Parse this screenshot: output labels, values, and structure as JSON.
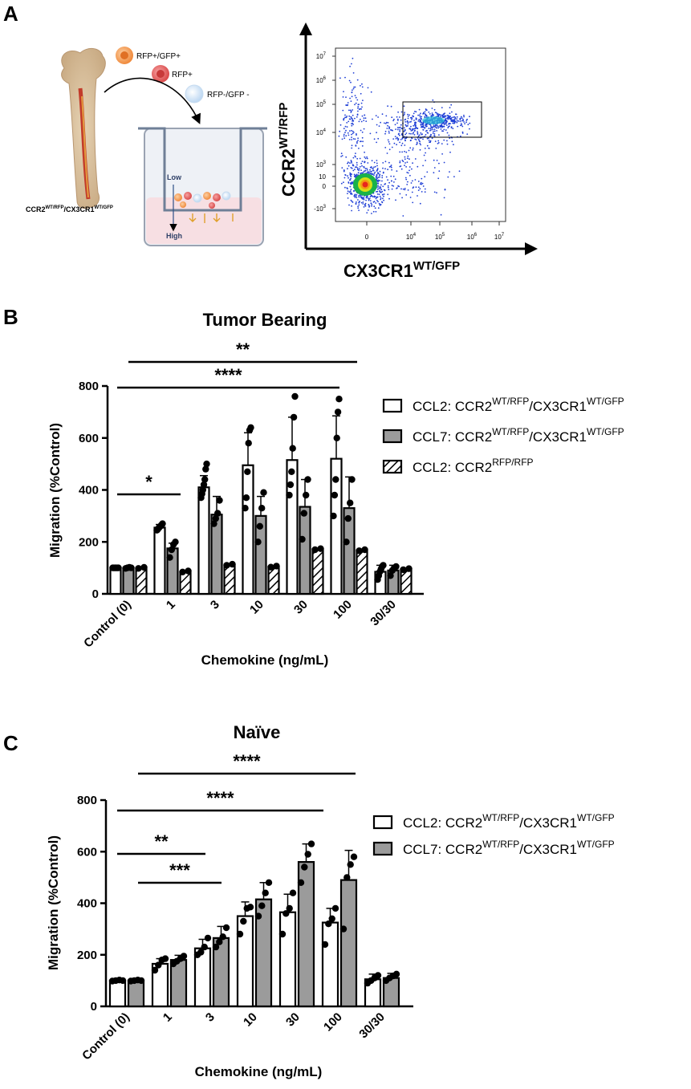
{
  "panels": {
    "a": "A",
    "b": "B",
    "c": "C"
  },
  "schematic": {
    "cell_labels": [
      "RFP+/GFP+",
      "RFP+",
      "RFP-/GFP -"
    ],
    "mouse_label": "CCR2",
    "mouse_sup1": "WT/RFP",
    "mouse_mid": "/CX3CR1",
    "mouse_sup2": "WT/GFP",
    "low": "Low",
    "high": "High"
  },
  "flow": {
    "y_axis": "CCR2",
    "y_sup": "WT/RFP",
    "x_axis": "CX3CR1",
    "x_sup": "WT/GFP",
    "y_ticks": [
      "10",
      "10",
      "10",
      "10",
      "10",
      "10",
      "0",
      "-10"
    ],
    "y_tick_exp": [
      "7",
      "6",
      "5",
      "4",
      "3",
      "",
      "",
      "3"
    ],
    "x_ticks": [
      "0",
      "10",
      "10",
      "10",
      "10"
    ],
    "x_tick_exp": [
      "",
      "4",
      "5",
      "6",
      "7"
    ]
  },
  "chart_data": [
    {
      "type": "bar",
      "title": "Tumor Bearing",
      "xlabel": "Chemokine (ng/mL)",
      "ylabel": "Migration (%Control)",
      "ylim": [
        0,
        800
      ],
      "yticks": [
        "0",
        "200",
        "400",
        "600",
        "800"
      ],
      "categories": [
        "Control (0)",
        "1",
        "3",
        "10",
        "30",
        "100",
        "30/30"
      ],
      "series": [
        {
          "name": "CCL2: CCR2WT/RFP/CX3CR1WT/GFP",
          "legend": {
            "a": "CCL2: CCR2",
            "b": "WT/RFP",
            "c": "/CX3CR1",
            "d": "WT/GFP"
          },
          "style": "open",
          "values": [
            100,
            255,
            410,
            495,
            515,
            520,
            85
          ],
          "errors": [
            4,
            12,
            45,
            125,
            165,
            165,
            25
          ],
          "points": [
            [
              100,
              100,
              100,
              100,
              100,
              100
            ],
            [
              245,
              250,
              255,
              260,
              265,
              270
            ],
            [
              370,
              385,
              400,
              420,
              440,
              480,
              500
            ],
            [
              330,
              370,
              470,
              580,
              630,
              640
            ],
            [
              380,
              420,
              470,
              560,
              680,
              760
            ],
            [
              300,
              380,
              440,
              600,
              700,
              750
            ],
            [
              55,
              70,
              85,
              95,
              105,
              110
            ]
          ]
        },
        {
          "name": "CCL7: CCR2WT/RFP/CX3CR1WT/GFP",
          "legend": {
            "a": "CCL7: CCR2",
            "b": "WT/RFP",
            "c": "/CX3CR1",
            "d": "WT/GFP"
          },
          "style": "gray",
          "values": [
            100,
            175,
            305,
            300,
            335,
            330,
            90
          ],
          "errors": [
            3,
            20,
            70,
            75,
            105,
            120,
            20
          ],
          "points": [
            [
              98,
              100,
              102,
              100
            ],
            [
              140,
              170,
              190,
              200
            ],
            [
              270,
              290,
              310,
              360
            ],
            [
              200,
              260,
              330,
              390
            ],
            [
              210,
              310,
              380,
              440
            ],
            [
              200,
              290,
              350,
              440
            ],
            [
              70,
              90,
              100,
              105
            ]
          ]
        },
        {
          "name": "CCL2: CCR2RFP/RFP",
          "legend": {
            "a": "CCL2: CCR2",
            "b": "RFP/RFP",
            "c": "",
            "d": ""
          },
          "style": "hatched",
          "values": [
            100,
            85,
            112,
            105,
            172,
            168,
            95
          ],
          "errors": [
            3,
            3,
            4,
            3,
            3,
            3,
            3
          ],
          "points": [
            [
              98,
              102
            ],
            [
              84,
              88
            ],
            [
              110,
              114
            ],
            [
              103,
              107
            ],
            [
              170,
              174
            ],
            [
              166,
              170
            ],
            [
              93,
              97
            ]
          ]
        }
      ],
      "significance": [
        {
          "from": "Control (0)",
          "to": "100",
          "label": "**"
        },
        {
          "from": "Control (0)",
          "to": "100",
          "label": "****"
        },
        {
          "from": "Control (0)",
          "to": "1",
          "label": "*"
        }
      ]
    },
    {
      "type": "bar",
      "title": "Naïve",
      "xlabel": "Chemokine (ng/mL)",
      "ylabel": "Migration (%Control)",
      "ylim": [
        0,
        800
      ],
      "yticks": [
        "0",
        "200",
        "400",
        "600",
        "800"
      ],
      "categories": [
        "Control (0)",
        "1",
        "3",
        "10",
        "30",
        "100",
        "30/30"
      ],
      "series": [
        {
          "name": "CCL2: CCR2WT/RFP/CX3CR1WT/GFP",
          "legend": {
            "a": "CCL2: CCR2",
            "b": "WT/RFP",
            "c": "/CX3CR1",
            "d": "WT/GFP"
          },
          "style": "open",
          "values": [
            100,
            165,
            225,
            350,
            365,
            325,
            105
          ],
          "errors": [
            3,
            20,
            35,
            55,
            70,
            55,
            20
          ],
          "points": [
            [
              98,
              100,
              102,
              100
            ],
            [
              140,
              160,
              180,
              185
            ],
            [
              200,
              210,
              230,
              265
            ],
            [
              280,
              330,
              380,
              385
            ],
            [
              280,
              360,
              380,
              440
            ],
            [
              240,
              320,
              340,
              380
            ],
            [
              90,
              100,
              110,
              120
            ]
          ]
        },
        {
          "name": "CCL7: CCR2WT/RFP/CX3CR1WT/GFP",
          "legend": {
            "a": "CCL7: CCR2",
            "b": "WT/RFP",
            "c": "/CX3CR1",
            "d": "WT/GFP"
          },
          "style": "gray",
          "values": [
            100,
            180,
            265,
            415,
            560,
            490,
            110
          ],
          "errors": [
            3,
            18,
            45,
            65,
            70,
            115,
            18
          ],
          "points": [
            [
              98,
              100,
              102,
              100
            ],
            [
              165,
              175,
              185,
              195
            ],
            [
              230,
              250,
              270,
              305
            ],
            [
              350,
              390,
              440,
              480
            ],
            [
              480,
              540,
              590,
              630
            ],
            [
              300,
              500,
              550,
              580
            ],
            [
              100,
              110,
              118,
              125
            ]
          ]
        }
      ],
      "significance": [
        {
          "from": "Control (0)",
          "to": "100",
          "label": "****"
        },
        {
          "from": "Control (0)",
          "to": "100",
          "label": "****"
        },
        {
          "from": "Control (0)",
          "to": "3",
          "label": "**"
        },
        {
          "from": "Control (0)",
          "to": "3",
          "label": "***"
        }
      ]
    }
  ]
}
